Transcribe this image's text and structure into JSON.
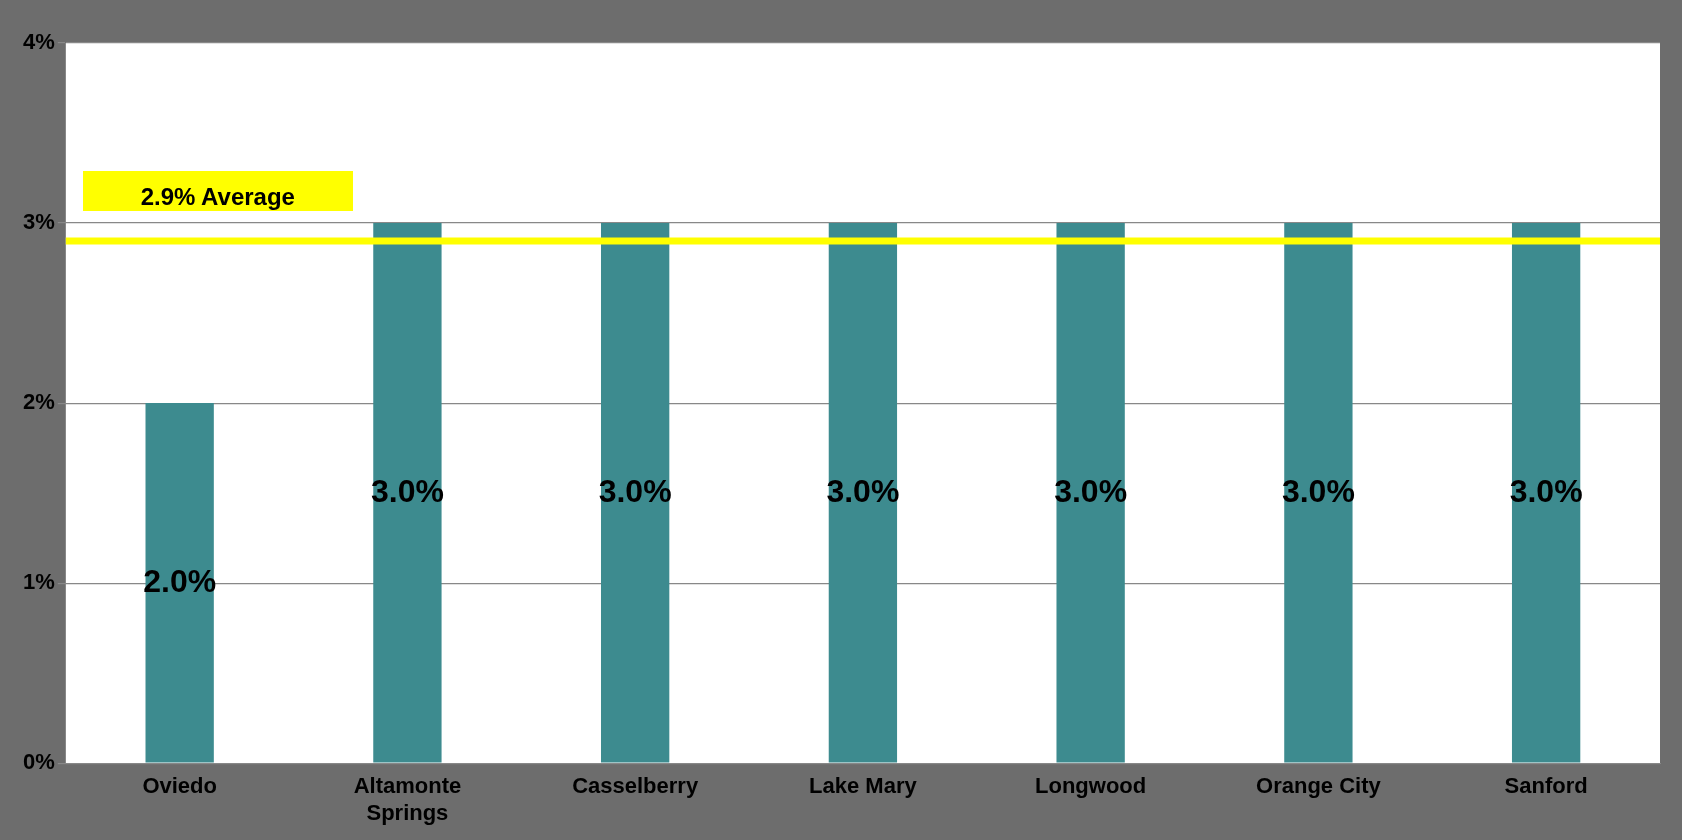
{
  "chart_data": {
    "type": "bar",
    "categories": [
      "Oviedo",
      "Altamonte Springs",
      "Casselberry",
      "Lake Mary",
      "Longwood",
      "Orange City",
      "Sanford"
    ],
    "values": [
      2.0,
      3.0,
      3.0,
      3.0,
      3.0,
      3.0,
      3.0
    ],
    "value_labels": [
      "2.0%",
      "3.0%",
      "3.0%",
      "3.0%",
      "3.0%",
      "3.0%",
      "3.0%"
    ],
    "color": "#3d8b8f",
    "ylim": [
      0,
      4
    ],
    "yticks": [
      {
        "value": 0,
        "label": "0%"
      },
      {
        "value": 1,
        "label": "1%"
      },
      {
        "value": 2,
        "label": "2%"
      },
      {
        "value": 3,
        "label": "3%"
      },
      {
        "value": 4,
        "label": "4%"
      }
    ],
    "grid": "y",
    "legend": false,
    "ref_lines": [
      {
        "axis": "y",
        "value": 2.9,
        "label": "2.9% Average",
        "color": "#ffff00"
      }
    ]
  }
}
